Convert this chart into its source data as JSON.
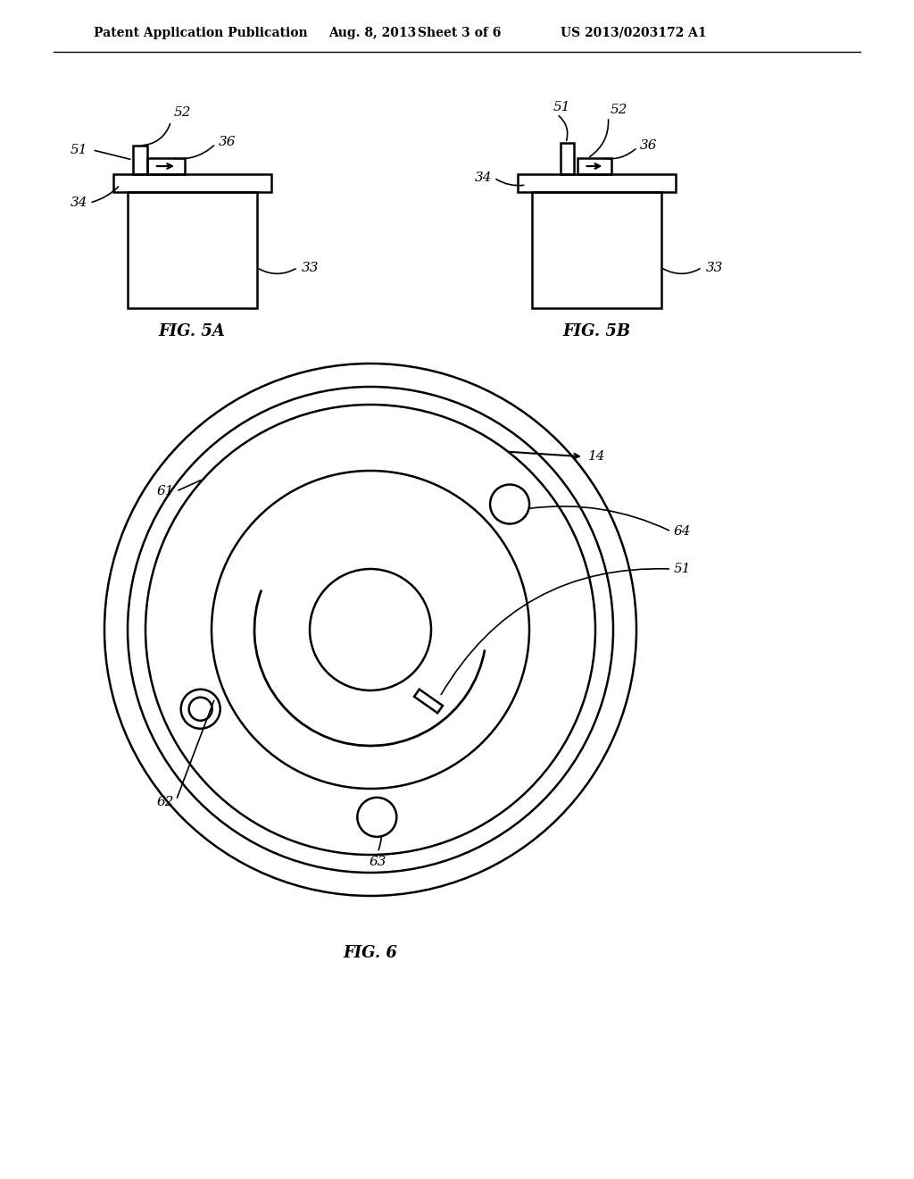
{
  "bg_color": "#ffffff",
  "line_color": "#000000",
  "header_text": "Patent Application Publication",
  "header_date": "Aug. 8, 2013",
  "header_sheet": "Sheet 3 of 6",
  "header_patent": "US 2013/0203172 A1",
  "fig5a_label": "FIG. 5A",
  "fig5b_label": "FIG. 5B",
  "fig6_label": "FIG. 6"
}
